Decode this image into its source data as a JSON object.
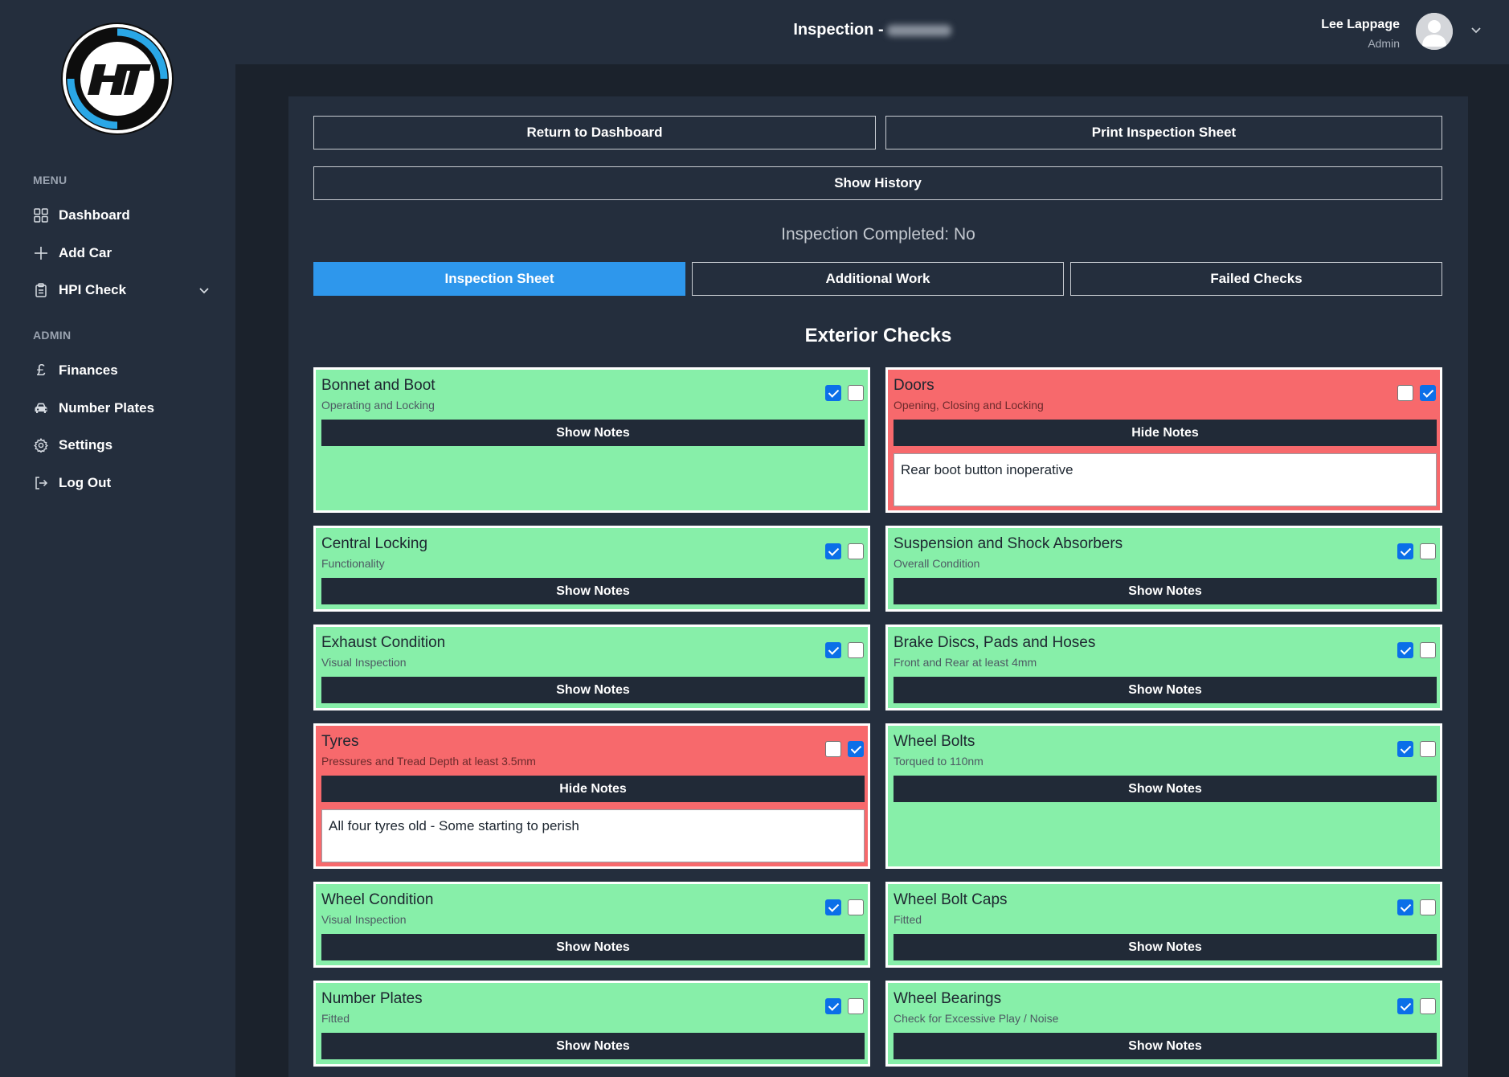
{
  "app": {
    "logo_text": "HT"
  },
  "header": {
    "title": "Inspection -",
    "user_name": "Lee Lappage",
    "user_role": "Admin"
  },
  "sidebar": {
    "menu_heading": "MENU",
    "admin_heading": "ADMIN",
    "menu_items": [
      {
        "label": "Dashboard",
        "icon": "grid-icon"
      },
      {
        "label": "Add Car",
        "icon": "plus-icon"
      },
      {
        "label": "HPI Check",
        "icon": "clipboard-icon"
      }
    ],
    "admin_items": [
      {
        "label": "Finances",
        "icon": "pound-icon"
      },
      {
        "label": "Number Plates",
        "icon": "car-icon"
      },
      {
        "label": "Settings",
        "icon": "gear-icon"
      },
      {
        "label": "Log Out",
        "icon": "logout-icon"
      }
    ]
  },
  "actions": {
    "return_label": "Return to Dashboard",
    "print_label": "Print Inspection Sheet",
    "history_label": "Show History"
  },
  "status": {
    "completed_text": "Inspection Completed: No"
  },
  "tabs": [
    {
      "label": "Inspection Sheet",
      "active": true
    },
    {
      "label": "Additional Work",
      "active": false
    },
    {
      "label": "Failed Checks",
      "active": false
    }
  ],
  "section": {
    "title": "Exterior Checks"
  },
  "colors": {
    "pass": "#87efa9",
    "fail": "#f7696c",
    "accent": "#2e97ec",
    "checkbox": "#0b6fe8"
  },
  "checks": [
    {
      "title": "Bonnet and Boot",
      "subtitle": "Operating and Locking",
      "pass": true,
      "fail": false,
      "notes_label": "Show Notes",
      "notes": ""
    },
    {
      "title": "Doors",
      "subtitle": "Opening, Closing and Locking",
      "pass": false,
      "fail": true,
      "notes_label": "Hide Notes",
      "notes": "Rear boot button inoperative"
    },
    {
      "title": "Central Locking",
      "subtitle": "Functionality",
      "pass": true,
      "fail": false,
      "notes_label": "Show Notes",
      "notes": ""
    },
    {
      "title": "Suspension and Shock Absorbers",
      "subtitle": "Overall Condition",
      "pass": true,
      "fail": false,
      "notes_label": "Show Notes",
      "notes": ""
    },
    {
      "title": "Exhaust Condition",
      "subtitle": "Visual Inspection",
      "pass": true,
      "fail": false,
      "notes_label": "Show Notes",
      "notes": ""
    },
    {
      "title": "Brake Discs, Pads and Hoses",
      "subtitle": "Front and Rear at least 4mm",
      "pass": true,
      "fail": false,
      "notes_label": "Show Notes",
      "notes": ""
    },
    {
      "title": "Tyres",
      "subtitle": "Pressures and Tread Depth at least 3.5mm",
      "pass": false,
      "fail": true,
      "notes_label": "Hide Notes",
      "notes": "All four tyres old - Some starting to perish"
    },
    {
      "title": "Wheel Bolts",
      "subtitle": "Torqued to 110nm",
      "pass": true,
      "fail": false,
      "notes_label": "Show Notes",
      "notes": ""
    },
    {
      "title": "Wheel Condition",
      "subtitle": "Visual Inspection",
      "pass": true,
      "fail": false,
      "notes_label": "Show Notes",
      "notes": ""
    },
    {
      "title": "Wheel Bolt Caps",
      "subtitle": "Fitted",
      "pass": true,
      "fail": false,
      "notes_label": "Show Notes",
      "notes": ""
    },
    {
      "title": "Number Plates",
      "subtitle": "Fitted",
      "pass": true,
      "fail": false,
      "notes_label": "Show Notes",
      "notes": ""
    },
    {
      "title": "Wheel Bearings",
      "subtitle": "Check for Excessive Play / Noise",
      "pass": true,
      "fail": false,
      "notes_label": "Show Notes",
      "notes": ""
    }
  ]
}
